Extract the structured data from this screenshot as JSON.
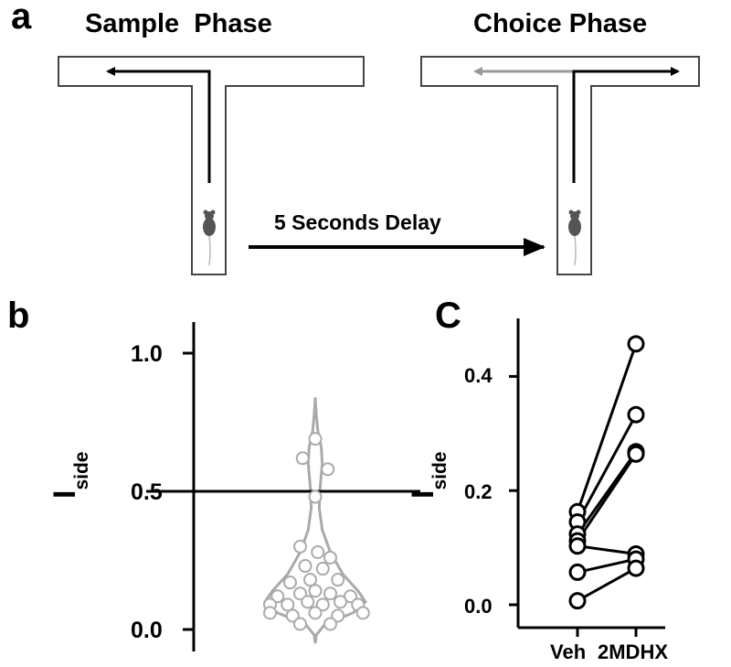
{
  "panel_a": {
    "letter": "a",
    "sample_title": "Sample  Phase",
    "choice_title": "Choice Phase",
    "delay_label": "5 Seconds Delay"
  },
  "panel_b": {
    "letter": "b",
    "y_ticks": [
      "1.0",
      "0.5",
      "0.0"
    ],
    "y_label_main": "I",
    "y_label_sub": "side"
  },
  "panel_c": {
    "letter": "C",
    "y_ticks": [
      "0.4",
      "0.2",
      "0.0"
    ],
    "y_label_main": "I",
    "y_label_sub": "side",
    "x_labels": [
      "Veh",
      "2MDHX"
    ]
  },
  "chart_data": [
    {
      "type": "scatter",
      "panel": "b",
      "ylabel": "I_side",
      "ylim": [
        -0.05,
        1.2
      ],
      "reference_line": 0.5,
      "violin": true,
      "points": [
        {
          "x": -0.25,
          "y": 0.62
        },
        {
          "x": 0.25,
          "y": 0.58
        },
        {
          "x": 0.0,
          "y": 0.69
        },
        {
          "x": 0.0,
          "y": 0.48
        },
        {
          "x": -0.3,
          "y": 0.3
        },
        {
          "x": 0.05,
          "y": 0.28
        },
        {
          "x": 0.3,
          "y": 0.26
        },
        {
          "x": -0.2,
          "y": 0.23
        },
        {
          "x": 0.15,
          "y": 0.22
        },
        {
          "x": -0.5,
          "y": 0.17
        },
        {
          "x": -0.1,
          "y": 0.18
        },
        {
          "x": 0.45,
          "y": 0.18
        },
        {
          "x": -0.75,
          "y": 0.12
        },
        {
          "x": -0.3,
          "y": 0.13
        },
        {
          "x": 0.0,
          "y": 0.14
        },
        {
          "x": 0.3,
          "y": 0.13
        },
        {
          "x": 0.7,
          "y": 0.12
        },
        {
          "x": -0.9,
          "y": 0.09
        },
        {
          "x": -0.55,
          "y": 0.09
        },
        {
          "x": -0.15,
          "y": 0.1
        },
        {
          "x": 0.15,
          "y": 0.09
        },
        {
          "x": 0.5,
          "y": 0.1
        },
        {
          "x": 0.85,
          "y": 0.09
        },
        {
          "x": -0.9,
          "y": 0.06
        },
        {
          "x": -0.45,
          "y": 0.05
        },
        {
          "x": 0.0,
          "y": 0.06
        },
        {
          "x": 0.45,
          "y": 0.05
        },
        {
          "x": 0.95,
          "y": 0.06
        },
        {
          "x": -0.3,
          "y": 0.02
        },
        {
          "x": 0.3,
          "y": 0.02
        }
      ]
    },
    {
      "type": "line",
      "panel": "c",
      "categories": [
        "Veh",
        "2MDHX"
      ],
      "ylabel": "I_side",
      "ylim": [
        0.0,
        0.48
      ],
      "paired": [
        [
          0.163,
          0.457
        ],
        [
          0.145,
          0.333
        ],
        [
          0.124,
          0.268
        ],
        [
          0.112,
          0.264
        ],
        [
          0.103,
          0.089
        ],
        [
          0.057,
          0.08
        ],
        [
          0.007,
          0.064
        ]
      ]
    }
  ]
}
